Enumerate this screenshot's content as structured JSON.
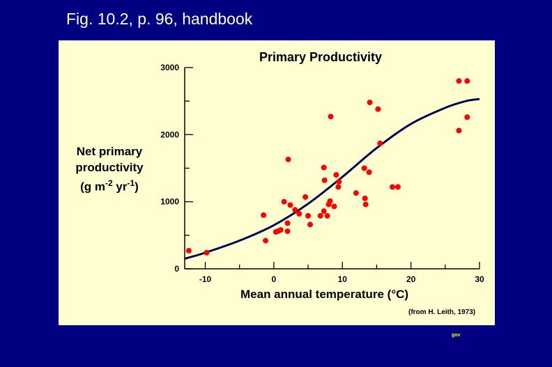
{
  "slide": {
    "title": "Fig. 10.2, p. 96, handbook",
    "footer_tag": "gov"
  },
  "chart_data": {
    "type": "scatter",
    "title": "Primary Productivity",
    "ylabel_line1": "Net primary",
    "ylabel_line2": "productivity",
    "ylabel_unit_open": "(g m",
    "ylabel_unit_exp1": "-2",
    "ylabel_unit_mid": " yr",
    "ylabel_unit_exp2": "-1",
    "ylabel_unit_close": ")",
    "xlabel": "Mean annual temperature (°C)",
    "source": "(from H. Leith, 1973)",
    "xlim": [
      -13,
      30
    ],
    "ylim": [
      0,
      3000
    ],
    "xticks": [
      -10,
      0,
      10,
      20,
      30
    ],
    "yticks": [
      0,
      1000,
      2000,
      3000
    ],
    "colors": {
      "points": "#ff0000",
      "curve": "#000050",
      "panel": "#fefed0",
      "background": "#000080"
    },
    "points": [
      {
        "x": -12.4,
        "y": 270
      },
      {
        "x": -9.8,
        "y": 240
      },
      {
        "x": -1.5,
        "y": 800
      },
      {
        "x": -1.2,
        "y": 420
      },
      {
        "x": 0.3,
        "y": 550
      },
      {
        "x": 0.6,
        "y": 560
      },
      {
        "x": 1.0,
        "y": 580
      },
      {
        "x": 1.5,
        "y": 1000
      },
      {
        "x": 2.0,
        "y": 560
      },
      {
        "x": 2.0,
        "y": 680
      },
      {
        "x": 2.1,
        "y": 1630
      },
      {
        "x": 2.4,
        "y": 950
      },
      {
        "x": 3.1,
        "y": 880
      },
      {
        "x": 3.7,
        "y": 820
      },
      {
        "x": 4.6,
        "y": 1070
      },
      {
        "x": 5.0,
        "y": 790
      },
      {
        "x": 5.3,
        "y": 660
      },
      {
        "x": 6.8,
        "y": 790
      },
      {
        "x": 7.3,
        "y": 860
      },
      {
        "x": 7.3,
        "y": 1510
      },
      {
        "x": 7.4,
        "y": 1320
      },
      {
        "x": 7.8,
        "y": 790
      },
      {
        "x": 8.0,
        "y": 960
      },
      {
        "x": 8.2,
        "y": 1010
      },
      {
        "x": 8.3,
        "y": 2270
      },
      {
        "x": 8.8,
        "y": 930
      },
      {
        "x": 9.1,
        "y": 1400
      },
      {
        "x": 9.4,
        "y": 1220
      },
      {
        "x": 9.5,
        "y": 1300
      },
      {
        "x": 12.0,
        "y": 1130
      },
      {
        "x": 13.2,
        "y": 1500
      },
      {
        "x": 13.3,
        "y": 1050
      },
      {
        "x": 13.4,
        "y": 960
      },
      {
        "x": 13.9,
        "y": 1440
      },
      {
        "x": 14.0,
        "y": 2480
      },
      {
        "x": 15.2,
        "y": 2380
      },
      {
        "x": 15.5,
        "y": 1870
      },
      {
        "x": 17.3,
        "y": 1220
      },
      {
        "x": 18.1,
        "y": 1220
      },
      {
        "x": 27.0,
        "y": 2800
      },
      {
        "x": 27.0,
        "y": 2060
      },
      {
        "x": 28.2,
        "y": 2800
      },
      {
        "x": 28.2,
        "y": 2260
      }
    ],
    "curve": [
      {
        "x": -13,
        "y": 150
      },
      {
        "x": -10,
        "y": 240
      },
      {
        "x": -5,
        "y": 420
      },
      {
        "x": 0,
        "y": 650
      },
      {
        "x": 5,
        "y": 970
      },
      {
        "x": 10,
        "y": 1370
      },
      {
        "x": 15,
        "y": 1800
      },
      {
        "x": 20,
        "y": 2160
      },
      {
        "x": 25,
        "y": 2400
      },
      {
        "x": 28,
        "y": 2500
      },
      {
        "x": 30,
        "y": 2530
      }
    ]
  }
}
